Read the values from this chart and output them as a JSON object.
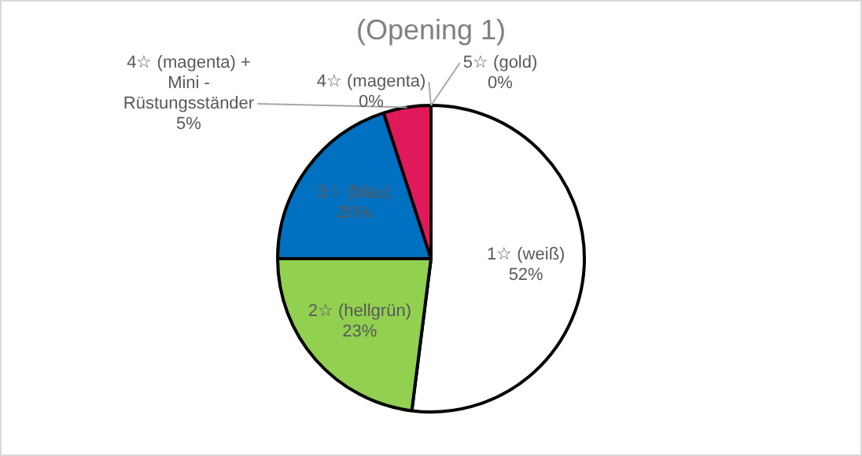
{
  "chart_data": {
    "type": "pie",
    "title": "(Opening 1)",
    "categories": [
      "1☆ (weiß)",
      "2☆ (hellgrün)",
      "3☆ (blau)",
      "4☆ (magenta) + Mini - Rüstungsständer",
      "4☆ (magenta)",
      "5☆ (gold)"
    ],
    "values": [
      52,
      23,
      20,
      5,
      0,
      0
    ],
    "colors": [
      "#ffffff",
      "#92d050",
      "#0070c0",
      "#e0195a",
      "#e0195a",
      "#ffc000"
    ],
    "value_labels": [
      "52%",
      "23%",
      "20%",
      "5%",
      "0%",
      "0%"
    ]
  }
}
